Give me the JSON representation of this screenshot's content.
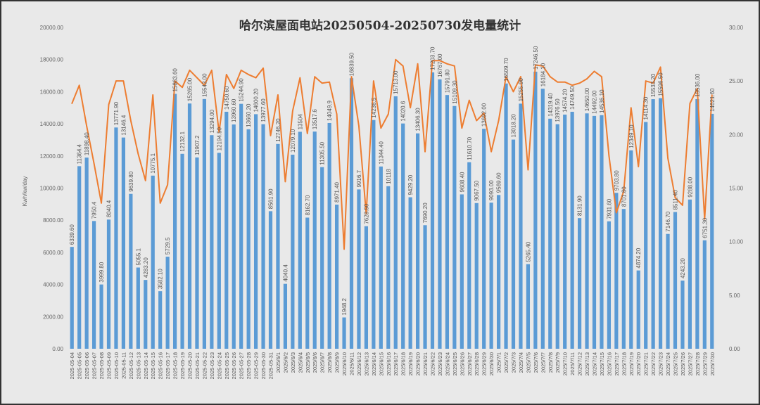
{
  "chart_data": {
    "type": "bar",
    "title": "哈尔滨屋面电站20250504-20250730发电量统计",
    "ylabel": "Kwh/kw/day",
    "ylim": [
      0,
      20000
    ],
    "y2lim": [
      0,
      30
    ],
    "yticks": [
      "0.00",
      "2000.00",
      "4000.00",
      "6000.00",
      "8000.00",
      "10000.00",
      "12000.00",
      "14000.00",
      "16000.00",
      "18000.00",
      "20000.00"
    ],
    "y2ticks": [
      "0.00",
      "5.00",
      "10.00",
      "15.00",
      "20.00",
      "25.00",
      "30.00"
    ],
    "grid": false,
    "categories": [
      "2025-05-04",
      "2025-05-05",
      "2025-05-06",
      "2025-05-07",
      "2025-05-08",
      "2025-05-09",
      "2025-05-10",
      "2025-05-11",
      "2025-05-12",
      "2025-05-13",
      "2025-05-14",
      "2025-05-15",
      "2025-05-16",
      "2025-05-17",
      "2025-05-18",
      "2025-05-19",
      "2025-05-20",
      "2025-05-21",
      "2025-05-22",
      "2025-05-23",
      "2025-05-24",
      "2025-05-25",
      "2025-05-26",
      "2025-05-27",
      "2025-05-28",
      "2025-05-29",
      "2025-05-30",
      "2025-05-31",
      "2025/6/1",
      "2025/6/2",
      "2025/6/3",
      "2025/6/4",
      "2025/6/5",
      "2025/6/6",
      "2025/6/7",
      "2025/6/8",
      "2025/6/9",
      "2025/6/10",
      "2025/6/11",
      "2025/6/12",
      "2025/6/13",
      "2025/6/14",
      "2025/6/15",
      "2025/6/16",
      "2025/6/17",
      "2025/6/18",
      "2025/6/19",
      "2025/6/20",
      "2025/6/21",
      "2025/6/22",
      "2025/6/23",
      "2025/6/24",
      "2025/6/25",
      "2025/6/26",
      "2025/6/27",
      "2025/6/28",
      "2025/6/29",
      "2025/6/30",
      "2025/7/1",
      "2025/7/2",
      "2025/7/3",
      "2025/7/4",
      "2025/7/5",
      "2025/7/6",
      "2025/7/7",
      "2025/7/8",
      "2025/7/9",
      "2025/7/10",
      "2025/7/11",
      "2025/7/12",
      "2025/7/13",
      "2025/7/14",
      "2025/7/15",
      "2025/7/16",
      "2025/7/17",
      "2025/7/18",
      "2025/7/19",
      "2025/7/20",
      "2025/7/21",
      "2025/7/22",
      "2025/7/23",
      "2025/7/24",
      "2025/7/25",
      "2025/7/26",
      "2025/7/27",
      "2025/7/28",
      "2025/7/29",
      "2025/7/30"
    ],
    "series": [
      {
        "name": "发电量",
        "type": "bar",
        "axis": "left",
        "color": "#5b9bd5",
        "labels": [
          "6339.60",
          "11364.4",
          "11898.40",
          "7950.4",
          "3999.80",
          "8040.4",
          "13771.90",
          "13146.4",
          "9639.80",
          "5055.1",
          "4283.20",
          "10775.1",
          "3582.10",
          "5729.5",
          "15863.60",
          "12132.1",
          "15265.00",
          "11907.2",
          "15543.00",
          "13294.00",
          "12194.50",
          "14750.60",
          "13960.60",
          "15244.90",
          "13660.20",
          "14600.20",
          "13977.60",
          "8561.90",
          "12746.20",
          "4040.4",
          "12079.10",
          "13504",
          "8162.70",
          "13517.6",
          "11305.50",
          "14049.9",
          "8971.40",
          "1948.2",
          "16839.50",
          "9916.7",
          "7628.50",
          "14236.5",
          "11344.40",
          "10118",
          "15713.00",
          "14020.6",
          "9429.20",
          "13406.30",
          "7690.20",
          "17203.70",
          "16767.00",
          "15791.80",
          "15109.30",
          "9608.40",
          "11610.70",
          "9067.50",
          "13692.00",
          "9093.00",
          "9569.60",
          "16509.70",
          "13018.20",
          "15255.90",
          "5265.40",
          "17246.50",
          "16184.10",
          "14319.40",
          "13976.50",
          "14574.20",
          "14749.50",
          "8131.90",
          "14650.00",
          "14492.00",
          "14536.10",
          "7931.60",
          "9703.80",
          "8701.80",
          "12349.10",
          "4874.20",
          "14114.30",
          "15533.20",
          "15596.50",
          "7146.70",
          "8511.40",
          "4243.20",
          "9288.00",
          "15536.00",
          "6751.30",
          "14621.60"
        ],
        "values": [
          6339.6,
          11364.4,
          11898.4,
          7950.4,
          3999.8,
          8040.4,
          13771.9,
          13146.4,
          9639.8,
          5055.1,
          4283.2,
          10775.1,
          3582.1,
          5729.5,
          15863.6,
          12132.1,
          15265.0,
          11907.2,
          15543.0,
          13294.0,
          12194.5,
          14750.6,
          13960.6,
          15244.9,
          13660.2,
          14600.2,
          13977.6,
          8561.9,
          12746.2,
          4040.4,
          12079.1,
          13504,
          8162.7,
          13517.6,
          11305.5,
          14049.9,
          8971.4,
          1948.2,
          16839.5,
          9916.7,
          7628.5,
          14236.5,
          11344.4,
          10118,
          15713.0,
          14020.6,
          9429.2,
          13406.3,
          7690.2,
          17203.7,
          16767.0,
          15791.8,
          15109.3,
          9608.4,
          11610.7,
          9067.5,
          13692.0,
          9093.0,
          9569.6,
          16509.7,
          13018.2,
          15255.9,
          5265.4,
          17246.5,
          16184.1,
          14319.4,
          13976.5,
          14574.2,
          14749.5,
          8131.9,
          14650.0,
          14492.0,
          14536.1,
          7931.6,
          9703.8,
          8701.8,
          12349.1,
          4874.2,
          14114.3,
          15533.2,
          15596.5,
          7146.7,
          8511.4,
          4243.2,
          9288.0,
          15536.0,
          6751.3,
          14621.6
        ]
      },
      {
        "name": "Kwh/kw/day",
        "type": "line",
        "axis": "right",
        "color": "#ed7d31",
        "values": [
          22.9,
          24.6,
          20.8,
          17.3,
          13.6,
          22.8,
          25.0,
          25.0,
          21.3,
          18.2,
          15.7,
          23.7,
          13.6,
          15.3,
          25.0,
          24.4,
          26.0,
          25.3,
          24.6,
          26.0,
          20.2,
          25.6,
          24.3,
          26.0,
          25.6,
          25.3,
          26.2,
          19.9,
          23.7,
          15.6,
          22.2,
          25.3,
          20.1,
          25.4,
          24.8,
          24.9,
          21.9,
          9.3,
          25.4,
          20.8,
          12.6,
          25.0,
          20.6,
          21.9,
          27.0,
          26.4,
          22.5,
          26.6,
          18.4,
          26.9,
          26.9,
          26.6,
          26.4,
          20.6,
          23.2,
          21.3,
          22.0,
          18.4,
          21.3,
          25.4,
          24.0,
          25.4,
          16.7,
          26.5,
          26.4,
          25.4,
          24.9,
          24.9,
          24.6,
          24.8,
          25.2,
          25.9,
          25.4,
          18.0,
          12.7,
          14.7,
          22.5,
          17.0,
          25.0,
          24.8,
          26.3,
          17.8,
          14.1,
          13.4,
          22.9,
          24.3,
          12.1,
          23.7
        ]
      }
    ]
  }
}
